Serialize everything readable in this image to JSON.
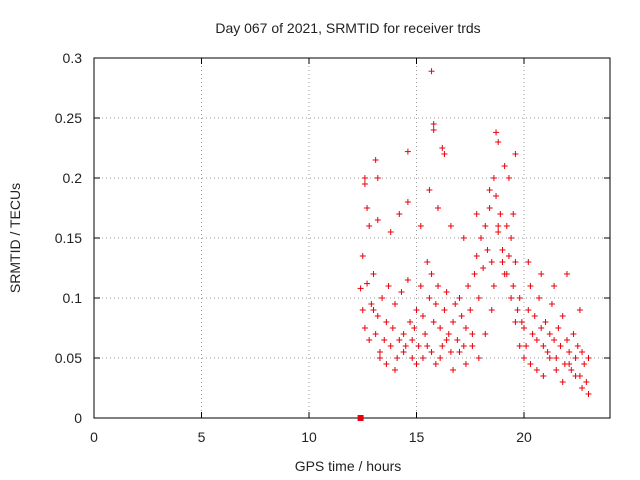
{
  "chart_data": {
    "type": "scatter",
    "title": "Day 067 of 2021, SRMTID for receiver trds",
    "xlabel": "GPS time / hours",
    "ylabel": "SRMTID / TECUs",
    "xlim": [
      0,
      24
    ],
    "ylim": [
      0,
      0.3
    ],
    "x_ticks": [
      0,
      5,
      10,
      15,
      20
    ],
    "y_ticks": [
      0,
      0.05,
      0.1,
      0.15,
      0.2,
      0.25,
      0.3
    ],
    "x_tick_labels": [
      "0",
      "5",
      "10",
      "15",
      "20"
    ],
    "y_tick_labels": [
      "0",
      "0.05",
      "0.1",
      "0.15",
      "0.2",
      "0.25",
      "0.3"
    ],
    "grid": true,
    "marker_color": "#e8000b",
    "marker": "plus",
    "series": [
      {
        "x": [
          12.4,
          12.5,
          12.6,
          12.7,
          12.8,
          12.9,
          13.0,
          13.1,
          13.2,
          13.3,
          13.4,
          13.5,
          13.6,
          13.7,
          13.8,
          13.9,
          14.0,
          14.1,
          14.2,
          14.3,
          14.4,
          14.5,
          14.6,
          14.7,
          14.8,
          14.9,
          15.0,
          15.1,
          15.2,
          15.3,
          15.4,
          15.5,
          15.6,
          15.7,
          15.8,
          15.9,
          16.0,
          16.1,
          16.2,
          16.3,
          16.4,
          16.5,
          16.6,
          16.7,
          16.8,
          16.9,
          17.0,
          17.1,
          17.2,
          17.3,
          17.4,
          17.5,
          17.6,
          17.7,
          17.8,
          17.9,
          18.0,
          18.1,
          18.2,
          18.3,
          18.4,
          18.5,
          18.6,
          18.7,
          18.8,
          18.9,
          19.0,
          19.1,
          19.2,
          19.3,
          19.4,
          19.5,
          19.6,
          19.7,
          19.8,
          19.9,
          20.0,
          20.1,
          20.2,
          20.3,
          20.4,
          20.5,
          20.6,
          20.7,
          20.8,
          20.9,
          21.0,
          21.1,
          21.2,
          21.3,
          21.4,
          21.5,
          21.6,
          21.7,
          21.8,
          21.9,
          22.0,
          22.1,
          22.2,
          22.3,
          22.4,
          22.5,
          22.6,
          22.7,
          22.8,
          22.9,
          23.0,
          12.5,
          12.8,
          13.0,
          13.3,
          13.6,
          14.0,
          14.4,
          14.8,
          15.0,
          15.3,
          15.5,
          15.7,
          15.9,
          16.1,
          16.4,
          16.7,
          17.0,
          17.3,
          17.6,
          17.9,
          18.2,
          18.5,
          18.6,
          18.8,
          19.0,
          19.2,
          19.4,
          19.6,
          19.8,
          20.0,
          20.3,
          20.6,
          20.9,
          21.2,
          21.5,
          21.8,
          22.1,
          22.4,
          22.7,
          23.0,
          12.6,
          13.2,
          13.8,
          14.2,
          14.6,
          15.2,
          15.6,
          16.0,
          16.6,
          17.2,
          17.8,
          18.4,
          19.1,
          19.5,
          20.2,
          20.8,
          21.4,
          22.0,
          22.6,
          15.7,
          15.8,
          15.8,
          16.2,
          16.3,
          13.1,
          13.2,
          14.6,
          18.7,
          18.8,
          19.3,
          19.6,
          12.6,
          12.7
        ],
        "y": [
          0.108,
          0.09,
          0.075,
          0.112,
          0.065,
          0.095,
          0.12,
          0.07,
          0.085,
          0.055,
          0.1,
          0.065,
          0.08,
          0.11,
          0.06,
          0.075,
          0.095,
          0.05,
          0.065,
          0.105,
          0.07,
          0.06,
          0.115,
          0.08,
          0.065,
          0.075,
          0.09,
          0.06,
          0.11,
          0.085,
          0.07,
          0.13,
          0.1,
          0.12,
          0.08,
          0.095,
          0.11,
          0.075,
          0.06,
          0.09,
          0.105,
          0.07,
          0.055,
          0.08,
          0.095,
          0.065,
          0.1,
          0.085,
          0.06,
          0.075,
          0.11,
          0.09,
          0.07,
          0.12,
          0.135,
          0.1,
          0.15,
          0.125,
          0.16,
          0.14,
          0.175,
          0.13,
          0.2,
          0.185,
          0.155,
          0.17,
          0.14,
          0.12,
          0.16,
          0.135,
          0.15,
          0.11,
          0.13,
          0.09,
          0.1,
          0.08,
          0.075,
          0.06,
          0.09,
          0.11,
          0.07,
          0.085,
          0.065,
          0.1,
          0.075,
          0.06,
          0.08,
          0.055,
          0.07,
          0.095,
          0.065,
          0.05,
          0.075,
          0.06,
          0.085,
          0.045,
          0.065,
          0.055,
          0.04,
          0.07,
          0.05,
          0.06,
          0.035,
          0.055,
          0.045,
          0.03,
          0.05,
          0.135,
          0.16,
          0.09,
          0.05,
          0.045,
          0.04,
          0.055,
          0.05,
          0.045,
          0.05,
          0.06,
          0.055,
          0.045,
          0.05,
          0.065,
          0.04,
          0.055,
          0.045,
          0.06,
          0.05,
          0.07,
          0.09,
          0.11,
          0.16,
          0.13,
          0.12,
          0.1,
          0.08,
          0.06,
          0.05,
          0.045,
          0.04,
          0.035,
          0.05,
          0.04,
          0.03,
          0.045,
          0.035,
          0.025,
          0.02,
          0.195,
          0.165,
          0.155,
          0.17,
          0.18,
          0.16,
          0.19,
          0.175,
          0.16,
          0.15,
          0.17,
          0.19,
          0.21,
          0.17,
          0.13,
          0.12,
          0.11,
          0.12,
          0.09,
          0.289,
          0.245,
          0.24,
          0.225,
          0.22,
          0.215,
          0.2,
          0.222,
          0.238,
          0.23,
          0.2,
          0.22,
          0.2,
          0.175
        ]
      }
    ],
    "marked_point": {
      "x": 12.4,
      "y": 0.0,
      "marker": "square"
    }
  }
}
